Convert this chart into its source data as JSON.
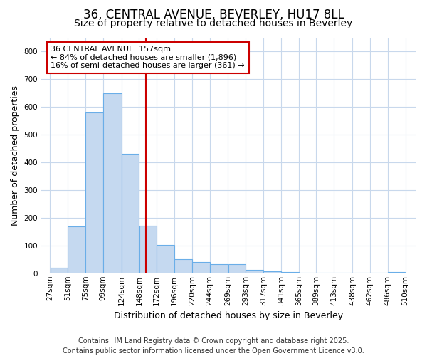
{
  "title_line1": "36, CENTRAL AVENUE, BEVERLEY, HU17 8LL",
  "title_line2": "Size of property relative to detached houses in Beverley",
  "xlabel": "Distribution of detached houses by size in Beverley",
  "ylabel": "Number of detached properties",
  "bar_left_edges": [
    27,
    51,
    75,
    99,
    124,
    148,
    172,
    196,
    220,
    244,
    269,
    293,
    317,
    341,
    365,
    389,
    413,
    438,
    462,
    486
  ],
  "bar_widths": [
    24,
    24,
    24,
    25,
    24,
    24,
    24,
    24,
    24,
    25,
    24,
    24,
    24,
    24,
    24,
    24,
    25,
    24,
    24,
    24
  ],
  "bar_heights": [
    20,
    170,
    580,
    648,
    430,
    172,
    102,
    50,
    40,
    33,
    33,
    12,
    8,
    5,
    3,
    2,
    1,
    1,
    1,
    5
  ],
  "bar_color": "#c5d9f0",
  "bar_edge_color": "#6aaee8",
  "vline_x": 157,
  "vline_color": "#cc0000",
  "annotation_title": "36 CENTRAL AVENUE: 157sqm",
  "annotation_line2": "← 84% of detached houses are smaller (1,896)",
  "annotation_line3": "16% of semi-detached houses are larger (361) →",
  "annotation_box_color": "#cc0000",
  "annotation_bg": "#ffffff",
  "ylim": [
    0,
    850
  ],
  "yticks": [
    0,
    100,
    200,
    300,
    400,
    500,
    600,
    700,
    800
  ],
  "tick_labels": [
    "27sqm",
    "51sqm",
    "75sqm",
    "99sqm",
    "124sqm",
    "148sqm",
    "172sqm",
    "196sqm",
    "220sqm",
    "244sqm",
    "269sqm",
    "293sqm",
    "317sqm",
    "341sqm",
    "365sqm",
    "389sqm",
    "413sqm",
    "438sqm",
    "462sqm",
    "486sqm",
    "510sqm"
  ],
  "tick_positions": [
    27,
    51,
    75,
    99,
    124,
    148,
    172,
    196,
    220,
    244,
    269,
    293,
    317,
    341,
    365,
    389,
    413,
    438,
    462,
    486,
    510
  ],
  "figure_bg": "#ffffff",
  "plot_bg": "#ffffff",
  "grid_color": "#c8d8ec",
  "footer_line1": "Contains HM Land Registry data © Crown copyright and database right 2025.",
  "footer_line2": "Contains public sector information licensed under the Open Government Licence v3.0.",
  "title_fontsize": 12,
  "subtitle_fontsize": 10,
  "axis_label_fontsize": 9,
  "tick_fontsize": 7.5,
  "footer_fontsize": 7,
  "ann_fontsize": 8
}
